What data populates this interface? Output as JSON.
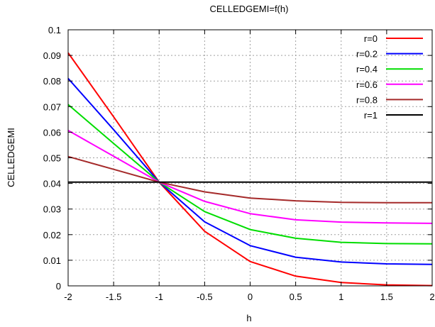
{
  "chart_data": {
    "type": "line",
    "title": "CELLEDGEMI=f(h)",
    "xlabel": "h",
    "ylabel": "CELLEDGEMI",
    "xlim": [
      -2,
      2
    ],
    "ylim": [
      0,
      0.1
    ],
    "xticks": [
      -2,
      -1.5,
      -1,
      -0.5,
      0,
      0.5,
      1,
      1.5,
      2
    ],
    "xtick_labels": [
      "-2",
      "-1.5",
      "-1",
      "-0.5",
      "0",
      "0.5",
      "1",
      "1.5",
      "2"
    ],
    "yticks": [
      0,
      0.01,
      0.02,
      0.03,
      0.04,
      0.05,
      0.06,
      0.07,
      0.08,
      0.09,
      0.1
    ],
    "ytick_labels": [
      "0",
      "0.01",
      "0.02",
      "0.03",
      "0.04",
      "0.05",
      "0.06",
      "0.07",
      "0.08",
      "0.09",
      "0.1"
    ],
    "grid": true,
    "legend_position": "top-right",
    "x": [
      -2,
      -1.5,
      -1,
      -0.5,
      0,
      0.5,
      1,
      1.5,
      2
    ],
    "series": [
      {
        "name": "r=0",
        "color": "#ff0000",
        "values": [
          0.091,
          0.066,
          0.0405,
          0.0213,
          0.0095,
          0.0038,
          0.0013,
          0.0004,
          0.0001
        ]
      },
      {
        "name": "r=0.2",
        "color": "#0000ff",
        "values": [
          0.081,
          0.061,
          0.0405,
          0.025,
          0.0157,
          0.0112,
          0.0093,
          0.0086,
          0.0084
        ]
      },
      {
        "name": "r=0.4",
        "color": "#00dd00",
        "values": [
          0.0708,
          0.0556,
          0.0405,
          0.029,
          0.022,
          0.0186,
          0.017,
          0.0165,
          0.0164
        ]
      },
      {
        "name": "r=0.6",
        "color": "#ff00ff",
        "values": [
          0.0607,
          0.0506,
          0.0405,
          0.033,
          0.0282,
          0.0258,
          0.0249,
          0.0246,
          0.0244
        ]
      },
      {
        "name": "r=0.8",
        "color": "#a52a2a",
        "values": [
          0.0505,
          0.0455,
          0.0405,
          0.0367,
          0.0343,
          0.0332,
          0.0326,
          0.0325,
          0.0325
        ]
      },
      {
        "name": "r=1",
        "color": "#000000",
        "values": [
          0.0405,
          0.0405,
          0.0405,
          0.0405,
          0.0405,
          0.0405,
          0.0405,
          0.0405,
          0.0405
        ]
      }
    ]
  }
}
